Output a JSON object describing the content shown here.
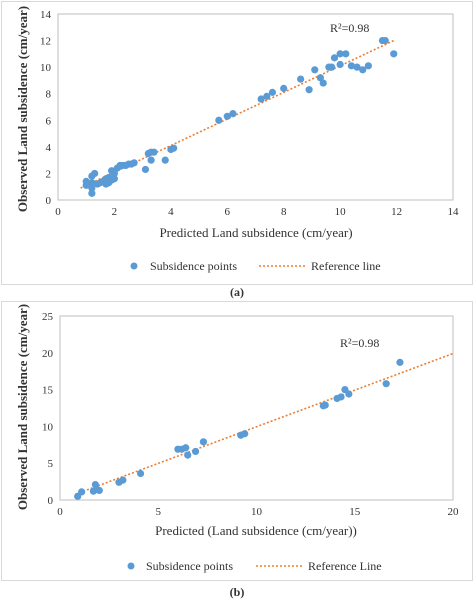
{
  "chart_data": [
    {
      "panel_label": "(a)",
      "type": "scatter",
      "xlabel": "Predicted Land subsidence (cm/year)",
      "ylabel": "Observed Land subsidence (cm/year)",
      "xlim": [
        0,
        14
      ],
      "ylim": [
        0,
        14
      ],
      "xticks": [
        0,
        2,
        4,
        6,
        8,
        10,
        12,
        14
      ],
      "yticks": [
        0,
        2,
        4,
        6,
        8,
        10,
        12,
        14
      ],
      "grid": false,
      "legend_position": "bottom",
      "annotation": "R²=0.98",
      "series": [
        {
          "name": "Subsidence points",
          "kind": "points",
          "color": "#5b9bd5",
          "points": [
            [
              1.0,
              1.1
            ],
            [
              1.0,
              1.4
            ],
            [
              1.2,
              0.5
            ],
            [
              1.2,
              0.9
            ],
            [
              1.2,
              1.3
            ],
            [
              1.2,
              1.8
            ],
            [
              1.3,
              2.0
            ],
            [
              1.4,
              1.2
            ],
            [
              1.5,
              1.3
            ],
            [
              1.6,
              1.4
            ],
            [
              1.7,
              1.2
            ],
            [
              1.7,
              1.6
            ],
            [
              1.8,
              1.3
            ],
            [
              1.8,
              1.7
            ],
            [
              1.9,
              2.2
            ],
            [
              1.9,
              1.5
            ],
            [
              2.0,
              1.6
            ],
            [
              2.0,
              2.0
            ],
            [
              2.1,
              2.4
            ],
            [
              2.2,
              2.6
            ],
            [
              2.3,
              2.6
            ],
            [
              2.4,
              2.6
            ],
            [
              2.5,
              2.7
            ],
            [
              2.6,
              2.7
            ],
            [
              2.7,
              2.8
            ],
            [
              3.1,
              2.3
            ],
            [
              3.2,
              3.5
            ],
            [
              3.3,
              3.6
            ],
            [
              3.3,
              3.0
            ],
            [
              3.4,
              3.6
            ],
            [
              3.8,
              3.0
            ],
            [
              4.0,
              3.8
            ],
            [
              4.1,
              3.9
            ],
            [
              5.7,
              6.0
            ],
            [
              6.0,
              6.3
            ],
            [
              6.2,
              6.5
            ],
            [
              7.2,
              7.6
            ],
            [
              7.4,
              7.8
            ],
            [
              7.6,
              8.1
            ],
            [
              8.0,
              8.4
            ],
            [
              8.6,
              9.1
            ],
            [
              8.9,
              8.3
            ],
            [
              9.1,
              9.8
            ],
            [
              9.3,
              9.2
            ],
            [
              9.4,
              8.8
            ],
            [
              9.6,
              10.0
            ],
            [
              9.7,
              10.0
            ],
            [
              9.8,
              10.7
            ],
            [
              10.0,
              10.2
            ],
            [
              10.0,
              11.0
            ],
            [
              10.2,
              11.0
            ],
            [
              10.4,
              10.1
            ],
            [
              10.6,
              10.0
            ],
            [
              10.8,
              9.8
            ],
            [
              11.0,
              10.1
            ],
            [
              11.5,
              12.0
            ],
            [
              11.6,
              12.0
            ],
            [
              11.9,
              11.0
            ]
          ]
        },
        {
          "name": "Reference line",
          "kind": "line",
          "color": "#ed7d31",
          "dashed": true,
          "points": [
            [
              0.8,
              0.9
            ],
            [
              11.9,
              12.0
            ]
          ]
        }
      ]
    },
    {
      "panel_label": "(b)",
      "type": "scatter",
      "xlabel": "Predicted (Land subsidence (cm/year))",
      "ylabel": "Observed Land subsidence (cm/year)",
      "xlim": [
        0,
        20
      ],
      "ylim": [
        0,
        25
      ],
      "xticks": [
        0,
        5,
        10,
        15,
        20
      ],
      "yticks": [
        0,
        5,
        10,
        15,
        20,
        25
      ],
      "grid": false,
      "legend_position": "bottom",
      "annotation": "R²=0.98",
      "series": [
        {
          "name": "Subsidence points",
          "kind": "points",
          "color": "#5b9bd5",
          "points": [
            [
              0.9,
              0.5
            ],
            [
              1.1,
              1.1
            ],
            [
              1.7,
              1.2
            ],
            [
              1.8,
              2.1
            ],
            [
              1.9,
              1.4
            ],
            [
              2.0,
              1.3
            ],
            [
              3.0,
              2.4
            ],
            [
              3.2,
              2.7
            ],
            [
              4.1,
              3.6
            ],
            [
              6.0,
              6.9
            ],
            [
              6.2,
              6.9
            ],
            [
              6.4,
              7.1
            ],
            [
              6.5,
              6.1
            ],
            [
              6.9,
              6.6
            ],
            [
              7.3,
              7.9
            ],
            [
              9.2,
              8.8
            ],
            [
              9.4,
              9.0
            ],
            [
              13.4,
              12.8
            ],
            [
              13.5,
              12.9
            ],
            [
              14.1,
              13.8
            ],
            [
              14.3,
              14.0
            ],
            [
              14.5,
              15.0
            ],
            [
              14.7,
              14.4
            ],
            [
              16.6,
              15.8
            ],
            [
              17.3,
              18.7
            ]
          ]
        },
        {
          "name": "Reference Line",
          "kind": "line",
          "color": "#ed7d31",
          "dashed": true,
          "points": [
            [
              0.8,
              0.8
            ],
            [
              20,
              19.9
            ]
          ]
        }
      ]
    }
  ]
}
